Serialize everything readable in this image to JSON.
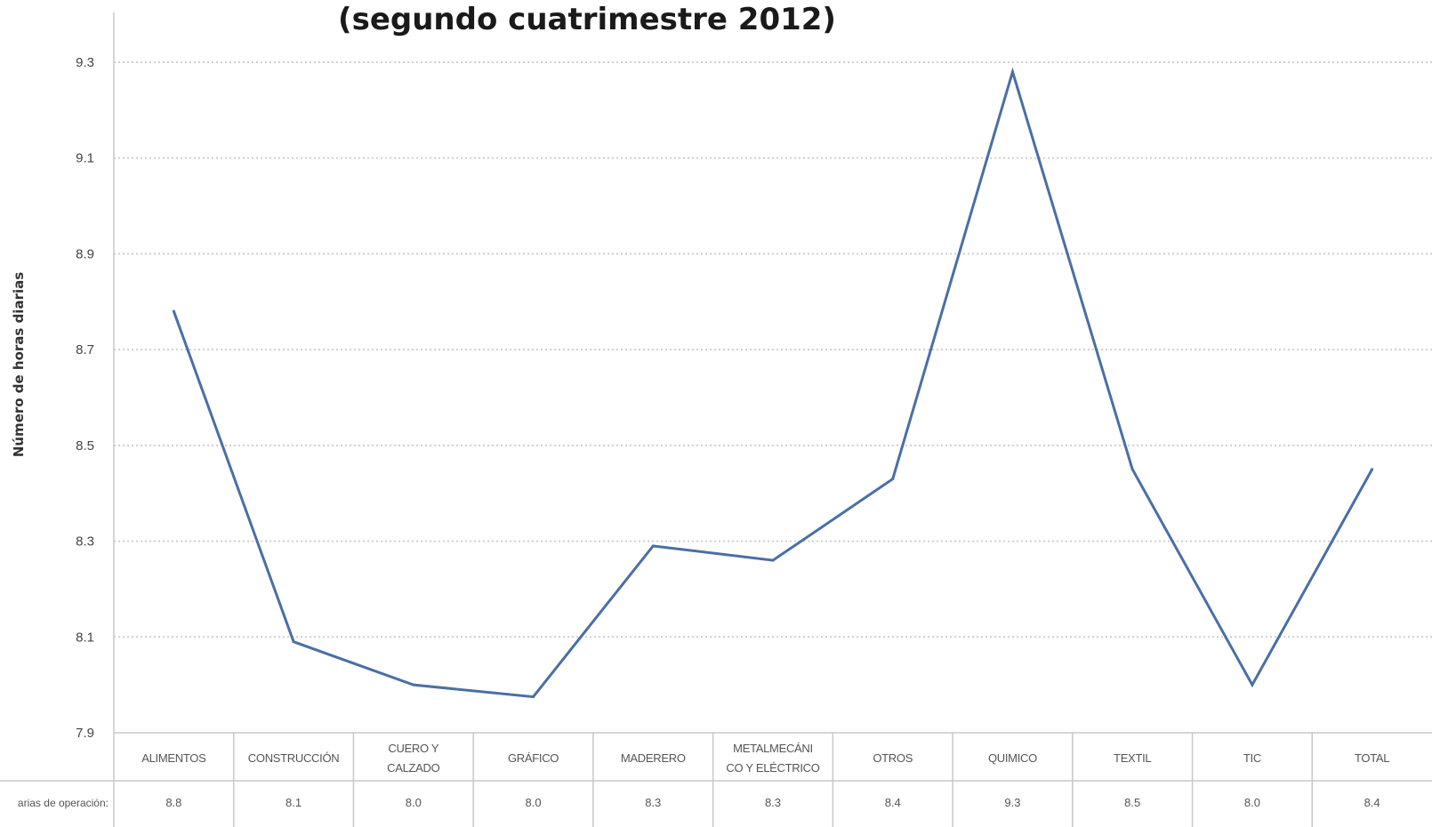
{
  "chart_data": {
    "type": "line",
    "title": "(segundo cuatrimestre 2012)",
    "ylabel": "Número de horas diarias",
    "ylim": [
      7.9,
      9.3
    ],
    "yticks": [
      "9.3",
      "9.1",
      "8.9",
      "8.7",
      "8.5",
      "8.3",
      "8.1",
      "7.9"
    ],
    "grid": true,
    "categories": [
      [
        "ALIMENTOS"
      ],
      [
        "CONSTRUCCIÓN"
      ],
      [
        "CUERO Y",
        "CALZADO"
      ],
      [
        "GRÁFICO"
      ],
      [
        "MADERERO"
      ],
      [
        "METALMECÁNI",
        "CO Y ELÉCTRICO"
      ],
      [
        "OTROS"
      ],
      [
        "QUIMICO"
      ],
      [
        "TEXTIL"
      ],
      [
        "TIC"
      ],
      [
        "TOTAL"
      ]
    ],
    "table_row_label": "arias de operación:",
    "table_values": [
      "8.8",
      "8.1",
      "8.0",
      "8.0",
      "8.3",
      "8.3",
      "8.4",
      "9.3",
      "8.5",
      "8.0",
      "8.4"
    ],
    "series": [
      {
        "values": [
          8.78,
          8.09,
          8.0,
          7.975,
          8.29,
          8.26,
          8.43,
          9.28,
          8.45,
          8.0,
          8.45
        ],
        "color": "#4a6fa5"
      }
    ]
  }
}
